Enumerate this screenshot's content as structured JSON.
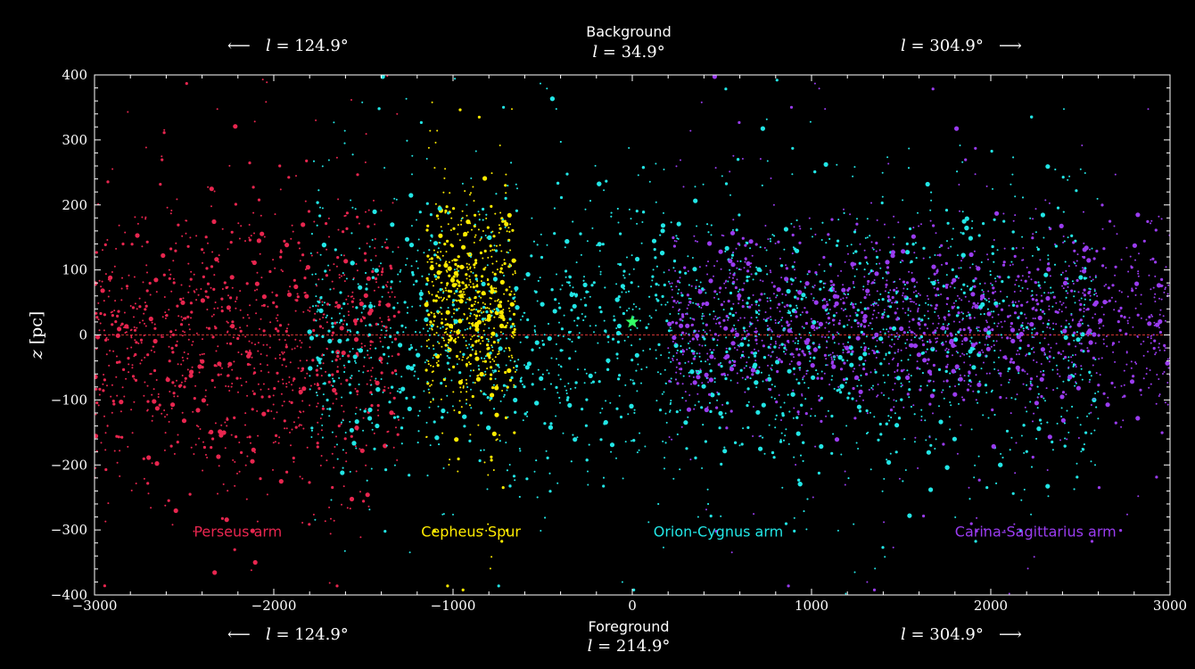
{
  "header": {
    "background_label": "Background",
    "background_longitude": "34.9°",
    "foreground_label": "Foreground",
    "foreground_longitude": "214.9°",
    "left_longitude": "124.9°",
    "right_longitude": "304.9°",
    "longitude_symbol": "l"
  },
  "chart_data": {
    "type": "scatter",
    "xlim": [
      -3000,
      3000
    ],
    "ylim": [
      -400,
      400
    ],
    "x_ticks": [
      "−3000",
      "−2000",
      "−1000",
      "0",
      "1000",
      "2000",
      "3000"
    ],
    "y_ticks": [
      "400",
      "300",
      "200",
      "100",
      "0",
      "−100",
      "−200",
      "−300",
      "−400"
    ],
    "ylabel_var": "z",
    "ylabel_unit": "[pc]",
    "grid": false,
    "sun": {
      "x": 0,
      "y": 20,
      "color": "#33ff66"
    },
    "zero_line_color": "#ff4040",
    "annotations": [
      {
        "text": "Perseus arm",
        "x": -2200,
        "y": -310,
        "color": "#e8264f"
      },
      {
        "text": "Cepheus Spur",
        "x": -900,
        "y": -310,
        "color": "#ffeb00"
      },
      {
        "text": "Orion-Cygnus arm",
        "x": 480,
        "y": -310,
        "color": "#22e6e6"
      },
      {
        "text": "Carina-Sagittarius arm",
        "x": 2250,
        "y": -310,
        "color": "#9a3cf0"
      }
    ],
    "series": [
      {
        "name": "Perseus arm",
        "color": "#e8264f",
        "x_range": [
          -3000,
          -1300
        ],
        "z_center": -20,
        "z_spread": 110,
        "count": 1100
      },
      {
        "name": "Cepheus Spur",
        "color": "#ffeb00",
        "x_range": [
          -1150,
          -650
        ],
        "z_center": 50,
        "z_spread": 80,
        "count": 650
      },
      {
        "name": "Orion-Cygnus arm",
        "color": "#22e6e6",
        "x_range": [
          -1800,
          2600
        ],
        "z_center": 0,
        "z_spread": 110,
        "count": 2600
      },
      {
        "name": "Carina-Sagittarius arm",
        "color": "#9a3cf0",
        "x_range": [
          200,
          3000
        ],
        "z_center": 20,
        "z_spread": 70,
        "count": 1600
      }
    ]
  }
}
